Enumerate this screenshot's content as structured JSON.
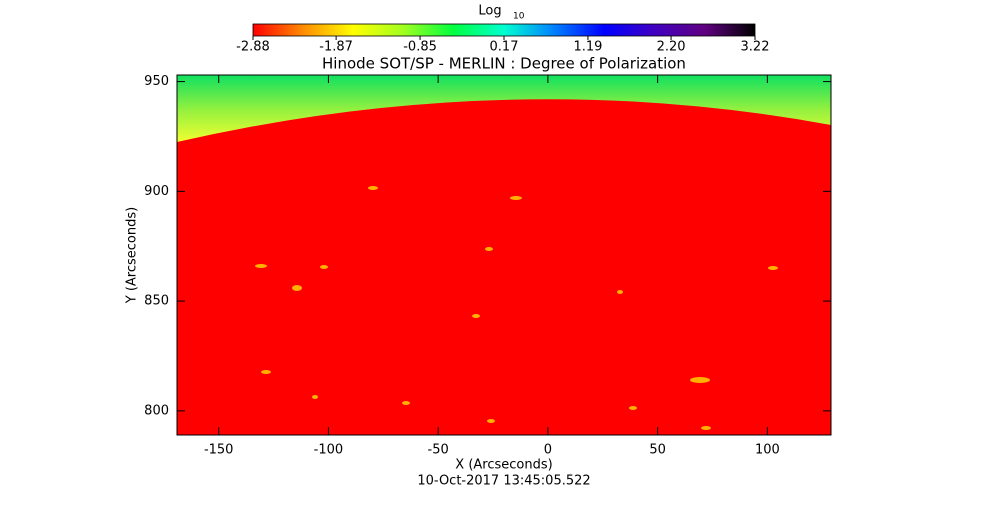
{
  "chart_data": {
    "type": "image",
    "title": "Hinode SOT/SP - MERLIN : Degree of Polarization",
    "x_label": "X (Arcseconds)",
    "y_label": "Y (Arcseconds)",
    "footer": "10-Oct-2017 13:45:05.522",
    "xlim": [
      -169,
      129
    ],
    "xticks": [
      -150,
      -100,
      -50,
      0,
      50,
      100
    ],
    "ylim": [
      789,
      953
    ],
    "yticks": [
      800,
      850,
      900,
      950
    ],
    "colorbar": {
      "label": "Log",
      "label_subscript": "10",
      "lim": [
        -2.88,
        3.22
      ],
      "ticks": [
        -2.88,
        -1.87,
        -0.85,
        0.17,
        1.19,
        {
          "value": 2.2,
          "label": "2.20"
        },
        3.22
      ],
      "colors": [
        "#ff0000",
        "#ff8c00",
        "#ffff00",
        "#a0ff20",
        "#00ff40",
        "#00ffd0",
        "#0080ff",
        "#0000ff",
        "#4000c0",
        "#600080",
        "#000000"
      ]
    }
  }
}
